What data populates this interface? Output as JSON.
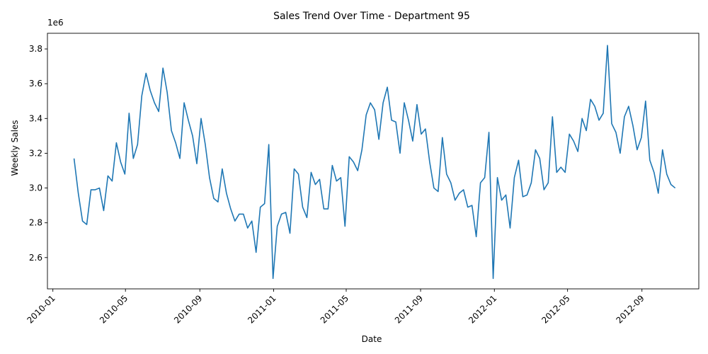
{
  "chart_data": {
    "type": "line",
    "title": "Sales Trend Over Time - Department 95",
    "xlabel": "Date",
    "ylabel": "Weekly Sales",
    "y_scale_label": "1e6",
    "y_multiplier": 1000000,
    "xlim": [
      "2009-12-23",
      "2012-12-04"
    ],
    "ylim": [
      2.42,
      3.89
    ],
    "x_ticks": [
      "2010-01",
      "2010-05",
      "2010-09",
      "2011-01",
      "2011-05",
      "2011-09",
      "2012-01",
      "2012-05",
      "2012-09"
    ],
    "y_ticks": [
      2.6,
      2.8,
      3.0,
      3.2,
      3.4,
      3.6,
      3.8
    ],
    "grid": false,
    "color": "#1f77b4",
    "series": [
      {
        "x": [
          "2010-02-05",
          "2010-02-12",
          "2010-02-19",
          "2010-02-26",
          "2010-03-05",
          "2010-03-12",
          "2010-03-19",
          "2010-03-26",
          "2010-04-02",
          "2010-04-09",
          "2010-04-16",
          "2010-04-23",
          "2010-04-30",
          "2010-05-07",
          "2010-05-14",
          "2010-05-21",
          "2010-05-28",
          "2010-06-04",
          "2010-06-11",
          "2010-06-18",
          "2010-06-25",
          "2010-07-02",
          "2010-07-09",
          "2010-07-16",
          "2010-07-23",
          "2010-07-30",
          "2010-08-06",
          "2010-08-13",
          "2010-08-20",
          "2010-08-27",
          "2010-09-03",
          "2010-09-10",
          "2010-09-17",
          "2010-09-24",
          "2010-10-01",
          "2010-10-08",
          "2010-10-15",
          "2010-10-22",
          "2010-10-29",
          "2010-11-05",
          "2010-11-12",
          "2010-11-19",
          "2010-11-26",
          "2010-12-03",
          "2010-12-10",
          "2010-12-17",
          "2010-12-24",
          "2010-12-31",
          "2011-01-07",
          "2011-01-14",
          "2011-01-21",
          "2011-01-28",
          "2011-02-04",
          "2011-02-11",
          "2011-02-18",
          "2011-02-25",
          "2011-03-04",
          "2011-03-11",
          "2011-03-18",
          "2011-03-25",
          "2011-04-01",
          "2011-04-08",
          "2011-04-15",
          "2011-04-22",
          "2011-04-29",
          "2011-05-06",
          "2011-05-13",
          "2011-05-20",
          "2011-05-27",
          "2011-06-03",
          "2011-06-10",
          "2011-06-17",
          "2011-06-24",
          "2011-07-01",
          "2011-07-08",
          "2011-07-15",
          "2011-07-22",
          "2011-07-29",
          "2011-08-05",
          "2011-08-12",
          "2011-08-19",
          "2011-08-26",
          "2011-09-02",
          "2011-09-09",
          "2011-09-16",
          "2011-09-23",
          "2011-09-30",
          "2011-10-07",
          "2011-10-14",
          "2011-10-21",
          "2011-10-28",
          "2011-11-04",
          "2011-11-11",
          "2011-11-18",
          "2011-11-25",
          "2011-12-02",
          "2011-12-09",
          "2011-12-16",
          "2011-12-23",
          "2011-12-30",
          "2012-01-06",
          "2012-01-13",
          "2012-01-20",
          "2012-01-27",
          "2012-02-03",
          "2012-02-10",
          "2012-02-17",
          "2012-02-24",
          "2012-03-02",
          "2012-03-09",
          "2012-03-16",
          "2012-03-23",
          "2012-03-30",
          "2012-04-06",
          "2012-04-13",
          "2012-04-20",
          "2012-04-27",
          "2012-05-04",
          "2012-05-11",
          "2012-05-18",
          "2012-05-25",
          "2012-06-01",
          "2012-06-08",
          "2012-06-15",
          "2012-06-22",
          "2012-06-29",
          "2012-07-06",
          "2012-07-13",
          "2012-07-20",
          "2012-07-27",
          "2012-08-03",
          "2012-08-10",
          "2012-08-17",
          "2012-08-24",
          "2012-08-31",
          "2012-09-07",
          "2012-09-14",
          "2012-09-21",
          "2012-09-28",
          "2012-10-05",
          "2012-10-12",
          "2012-10-19",
          "2012-10-26"
        ],
        "values": [
          3.17,
          2.97,
          2.81,
          2.79,
          2.99,
          2.99,
          3.0,
          2.87,
          3.07,
          3.04,
          3.26,
          3.15,
          3.08,
          3.43,
          3.17,
          3.25,
          3.53,
          3.66,
          3.56,
          3.49,
          3.44,
          3.69,
          3.55,
          3.33,
          3.26,
          3.17,
          3.49,
          3.39,
          3.3,
          3.14,
          3.4,
          3.25,
          3.06,
          2.94,
          2.92,
          3.11,
          2.97,
          2.88,
          2.81,
          2.85,
          2.85,
          2.77,
          2.81,
          2.63,
          2.89,
          2.91,
          3.25,
          2.48,
          2.78,
          2.85,
          2.86,
          2.74,
          3.11,
          3.08,
          2.89,
          2.83,
          3.09,
          3.02,
          3.05,
          2.88,
          2.88,
          3.13,
          3.04,
          3.06,
          2.78,
          3.18,
          3.15,
          3.1,
          3.22,
          3.42,
          3.49,
          3.45,
          3.28,
          3.49,
          3.58,
          3.39,
          3.38,
          3.2,
          3.49,
          3.39,
          3.27,
          3.48,
          3.31,
          3.34,
          3.15,
          3.0,
          2.98,
          3.29,
          3.08,
          3.03,
          2.93,
          2.97,
          2.99,
          2.89,
          2.9,
          2.72,
          3.03,
          3.06,
          3.32,
          2.48,
          3.06,
          2.93,
          2.96,
          2.77,
          3.06,
          3.16,
          2.95,
          2.96,
          3.03,
          3.22,
          3.17,
          2.99,
          3.03,
          3.41,
          3.09,
          3.12,
          3.09,
          3.31,
          3.27,
          3.21,
          3.4,
          3.33,
          3.51,
          3.47,
          3.39,
          3.43,
          3.82,
          3.37,
          3.32,
          3.2,
          3.41,
          3.47,
          3.36,
          3.22,
          3.29,
          3.5,
          3.16,
          3.09,
          2.97,
          3.22,
          3.08,
          3.02,
          3.0
        ]
      }
    ]
  }
}
